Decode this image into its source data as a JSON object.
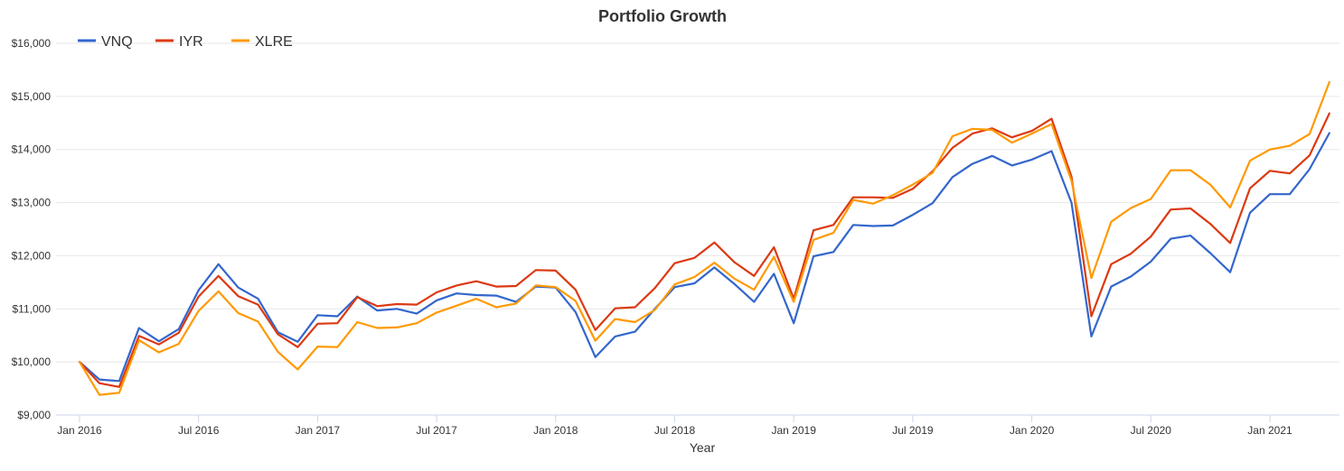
{
  "chart_data": {
    "type": "line",
    "title": "Portfolio Growth",
    "xlabel": "Year",
    "ylabel": "",
    "ylim": [
      9000,
      16000
    ],
    "yticks": [
      9000,
      10000,
      11000,
      12000,
      13000,
      14000,
      15000,
      16000
    ],
    "ytick_labels": [
      "$9,000",
      "$10,000",
      "$11,000",
      "$12,000",
      "$13,000",
      "$14,000",
      "$15,000",
      "$16,000"
    ],
    "x_months": [
      "2016-01",
      "2016-02",
      "2016-03",
      "2016-04",
      "2016-05",
      "2016-06",
      "2016-07",
      "2016-08",
      "2016-09",
      "2016-10",
      "2016-11",
      "2016-12",
      "2017-01",
      "2017-02",
      "2017-03",
      "2017-04",
      "2017-05",
      "2017-06",
      "2017-07",
      "2017-08",
      "2017-09",
      "2017-10",
      "2017-11",
      "2017-12",
      "2018-01",
      "2018-02",
      "2018-03",
      "2018-04",
      "2018-05",
      "2018-06",
      "2018-07",
      "2018-08",
      "2018-09",
      "2018-10",
      "2018-11",
      "2018-12",
      "2019-01",
      "2019-02",
      "2019-03",
      "2019-04",
      "2019-05",
      "2019-06",
      "2019-07",
      "2019-08",
      "2019-09",
      "2019-10",
      "2019-11",
      "2019-12",
      "2020-01",
      "2020-02",
      "2020-03",
      "2020-04",
      "2020-05",
      "2020-06",
      "2020-07",
      "2020-08",
      "2020-09",
      "2020-10",
      "2020-11",
      "2020-12",
      "2021-01",
      "2021-02",
      "2021-03",
      "2021-04"
    ],
    "xticks": [
      "2016-01",
      "2016-07",
      "2017-01",
      "2017-07",
      "2018-01",
      "2018-07",
      "2019-01",
      "2019-07",
      "2020-01",
      "2020-07",
      "2021-01"
    ],
    "xtick_labels": [
      "Jan 2016",
      "Jul 2016",
      "Jan 2017",
      "Jul 2017",
      "Jan 2018",
      "Jul 2018",
      "Jan 2019",
      "Jul 2019",
      "Jan 2020",
      "Jul 2020",
      "Jan 2021"
    ],
    "grid": "horizontal",
    "legend": "top-left",
    "series": [
      {
        "name": "VNQ",
        "color": "#3366cc",
        "values": [
          10000,
          9670,
          9640,
          10640,
          10390,
          10620,
          11350,
          11840,
          11400,
          11190,
          10560,
          10380,
          10880,
          10860,
          11230,
          10970,
          11000,
          10910,
          11160,
          11290,
          11260,
          11250,
          11130,
          11420,
          11400,
          10940,
          10090,
          10480,
          10570,
          11000,
          11410,
          11480,
          11780,
          11470,
          11130,
          11660,
          10730,
          11990,
          12070,
          12580,
          12560,
          12570,
          12770,
          12990,
          13480,
          13730,
          13880,
          13700,
          13810,
          13970,
          13000,
          10480,
          11420,
          11610,
          11890,
          12320,
          12380,
          12050,
          11690,
          12810,
          13160,
          13160,
          13630,
          14310
        ]
      },
      {
        "name": "IYR",
        "color": "#dc3912",
        "values": [
          10000,
          9600,
          9530,
          10490,
          10330,
          10550,
          11230,
          11620,
          11240,
          11080,
          10520,
          10280,
          10720,
          10730,
          11220,
          11050,
          11090,
          11080,
          11310,
          11440,
          11520,
          11420,
          11430,
          11730,
          11720,
          11360,
          10600,
          11010,
          11030,
          11390,
          11860,
          11960,
          12250,
          11880,
          11620,
          12160,
          11190,
          12480,
          12580,
          13100,
          13100,
          13090,
          13260,
          13590,
          14030,
          14300,
          14400,
          14230,
          14350,
          14580,
          13490,
          10860,
          11840,
          12040,
          12360,
          12870,
          12890,
          12600,
          12240,
          13270,
          13600,
          13550,
          13890,
          14680
        ]
      },
      {
        "name": "XLRE",
        "color": "#ff9900",
        "values": [
          10000,
          9380,
          9420,
          10410,
          10180,
          10340,
          10960,
          11330,
          10920,
          10760,
          10190,
          9860,
          10290,
          10280,
          10750,
          10640,
          10650,
          10730,
          10930,
          11060,
          11190,
          11030,
          11100,
          11440,
          11410,
          11150,
          10400,
          10810,
          10750,
          10980,
          11460,
          11600,
          11870,
          11570,
          11360,
          11980,
          11130,
          12300,
          12430,
          13050,
          12980,
          13140,
          13340,
          13560,
          14250,
          14390,
          14370,
          14130,
          14300,
          14480,
          13410,
          11580,
          12640,
          12900,
          13070,
          13610,
          13610,
          13340,
          12910,
          13790,
          14000,
          14070,
          14290,
          15270
        ]
      }
    ]
  }
}
